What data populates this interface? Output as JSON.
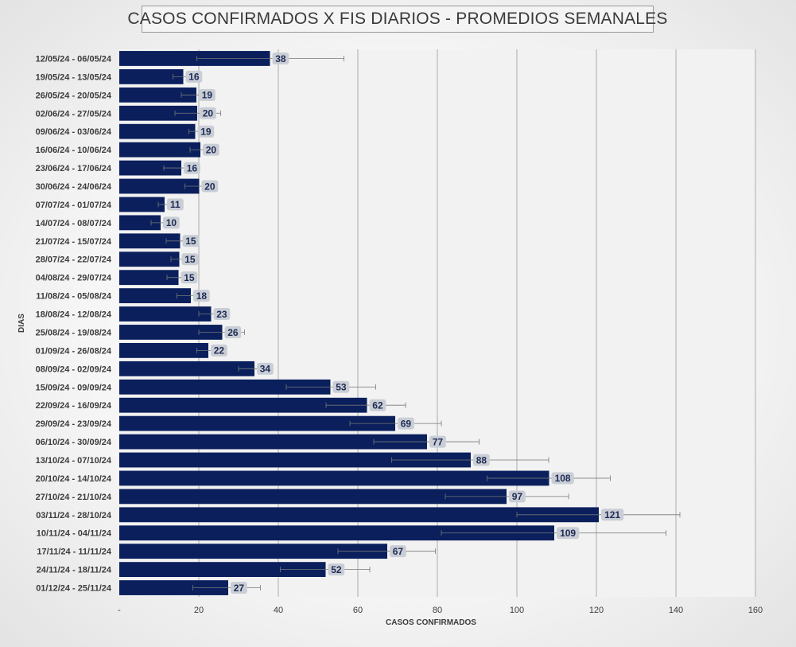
{
  "chart_data": {
    "type": "bar",
    "orientation": "horizontal",
    "title": "CASOS CONFIRMADOS X FIS DIARIOS - PROMEDIOS SEMANALES",
    "xlabel": "CASOS CONFIRMADOS",
    "ylabel": "DIAS",
    "xlim": [
      0,
      160
    ],
    "xticks": [
      0,
      20,
      40,
      60,
      80,
      100,
      120,
      140,
      160
    ],
    "xtick_labels": [
      "-",
      "20",
      "40",
      "60",
      "80",
      "100",
      "120",
      "140",
      "160"
    ],
    "grid": true,
    "categories": [
      "12/05/24 - 06/05/24",
      "19/05/24 - 13/05/24",
      "26/05/24 - 20/05/24",
      "02/06/24 - 27/05/24",
      "09/06/24 - 03/06/24",
      "16/06/24 - 10/06/24",
      "23/06/24 - 17/06/24",
      "30/06/24 - 24/06/24",
      "07/07/24 - 01/07/24",
      "14/07/24 - 08/07/24",
      "21/07/24 - 15/07/24",
      "28/07/24 - 22/07/24",
      "04/08/24 - 29/07/24",
      "11/08/24 - 05/08/24",
      "18/08/24 - 12/08/24",
      "25/08/24 - 19/08/24",
      "01/09/24 - 26/08/24",
      "08/09/24 - 02/09/24",
      "15/09/24 - 09/09/24",
      "22/09/24 - 16/09/24",
      "29/09/24 - 23/09/24",
      "06/10/24 - 30/09/24",
      "13/10/24 - 07/10/24",
      "20/10/24 - 14/10/24",
      "27/10/24 - 21/10/24",
      "03/11/24 - 28/10/24",
      "10/11/24 - 04/11/24",
      "17/11/24 - 11/11/24",
      "24/11/24 - 18/11/24",
      "01/12/24 - 25/11/24"
    ],
    "values": [
      37.9,
      16.1,
      19.4,
      19.6,
      19.1,
      20.4,
      15.6,
      20.1,
      11.4,
      10.4,
      15.3,
      15.1,
      14.9,
      18.0,
      23.1,
      25.9,
      22.4,
      34.0,
      53.1,
      62.3,
      69.4,
      77.4,
      88.4,
      108.1,
      97.4,
      120.6,
      109.4,
      67.4,
      51.9,
      27.4
    ],
    "data_labels": [
      "38",
      "16",
      "19",
      "20",
      "19",
      "20",
      "16",
      "20",
      "11",
      "10",
      "15",
      "15",
      "15",
      "18",
      "23",
      "26",
      "22",
      "34",
      "53",
      "62",
      "69",
      "77",
      "88",
      "108",
      "97",
      "121",
      "109",
      "67",
      "52",
      "27"
    ],
    "error_low": [
      19.5,
      13.5,
      15.6,
      14.0,
      17.5,
      17.8,
      11.2,
      16.5,
      9.8,
      8.0,
      11.8,
      13.0,
      12.0,
      14.5,
      20.0,
      20.0,
      19.5,
      30.0,
      42.0,
      52.0,
      58.0,
      64.0,
      68.5,
      92.5,
      82.0,
      100.0,
      81.0,
      55.0,
      40.5,
      18.5
    ],
    "error_high": [
      56.5,
      18.5,
      23.0,
      25.5,
      20.5,
      23.0,
      20.0,
      23.5,
      13.0,
      12.5,
      18.5,
      17.0,
      17.5,
      21.5,
      26.0,
      31.5,
      25.0,
      35.0,
      64.5,
      72.0,
      81.0,
      90.5,
      108.0,
      123.5,
      113.0,
      141.0,
      137.5,
      79.5,
      63.0,
      35.5
    ]
  },
  "colors": {
    "bar": "#0a1f5c",
    "plot_bg": "#f2f2f2",
    "grid": "#9a9a9a",
    "label_box": "#c9ced6",
    "label_text": "#1f2a52",
    "axis_text": "#3c3c3c"
  }
}
